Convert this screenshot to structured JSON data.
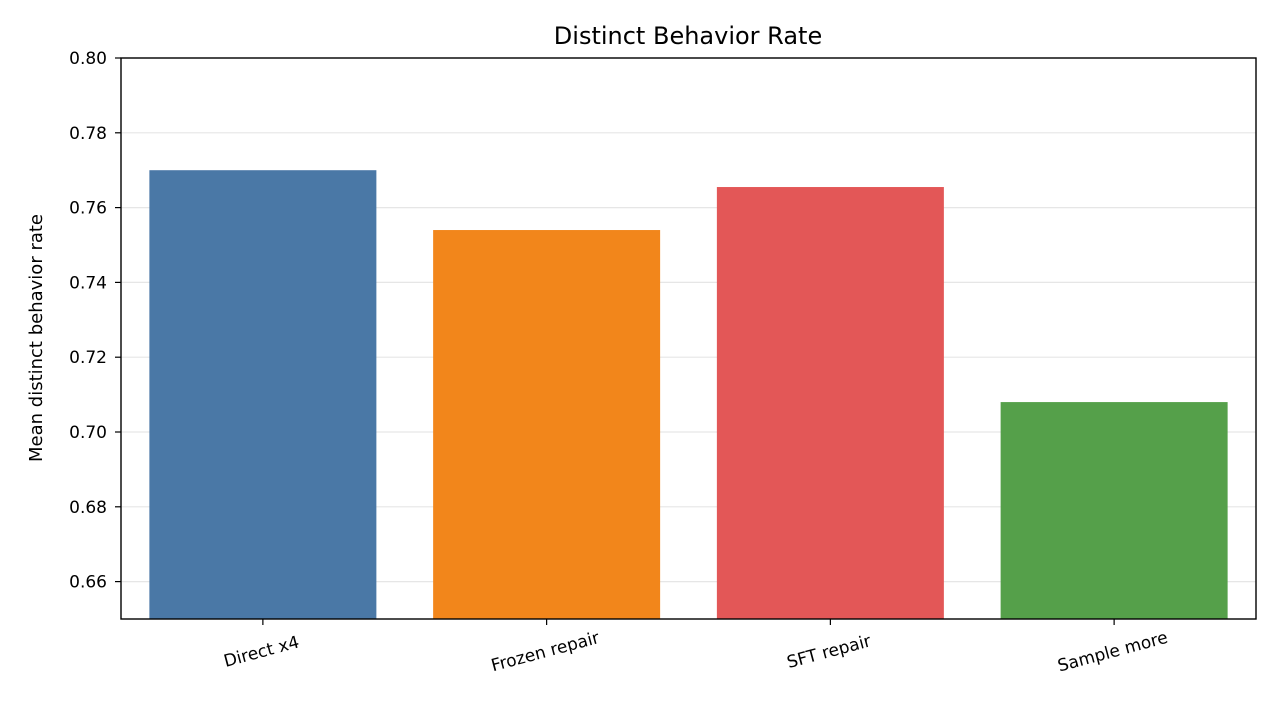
{
  "chart_data": {
    "type": "bar",
    "title": "Distinct Behavior Rate",
    "xlabel": "",
    "ylabel": "Mean distinct behavior rate",
    "categories": [
      "Direct x4",
      "Frozen repair",
      "SFT repair",
      "Sample more"
    ],
    "values": [
      0.77,
      0.754,
      0.7655,
      0.708
    ],
    "colors": [
      "#4a78a6",
      "#f2861b",
      "#e35757",
      "#55a04a"
    ],
    "ylim": [
      0.65,
      0.8
    ],
    "yticks": [
      "0.66",
      "0.68",
      "0.70",
      "0.72",
      "0.74",
      "0.76",
      "0.78",
      "0.80"
    ],
    "grid": "horizontal",
    "grid_color": "#e6e6e6",
    "legend": "none"
  }
}
